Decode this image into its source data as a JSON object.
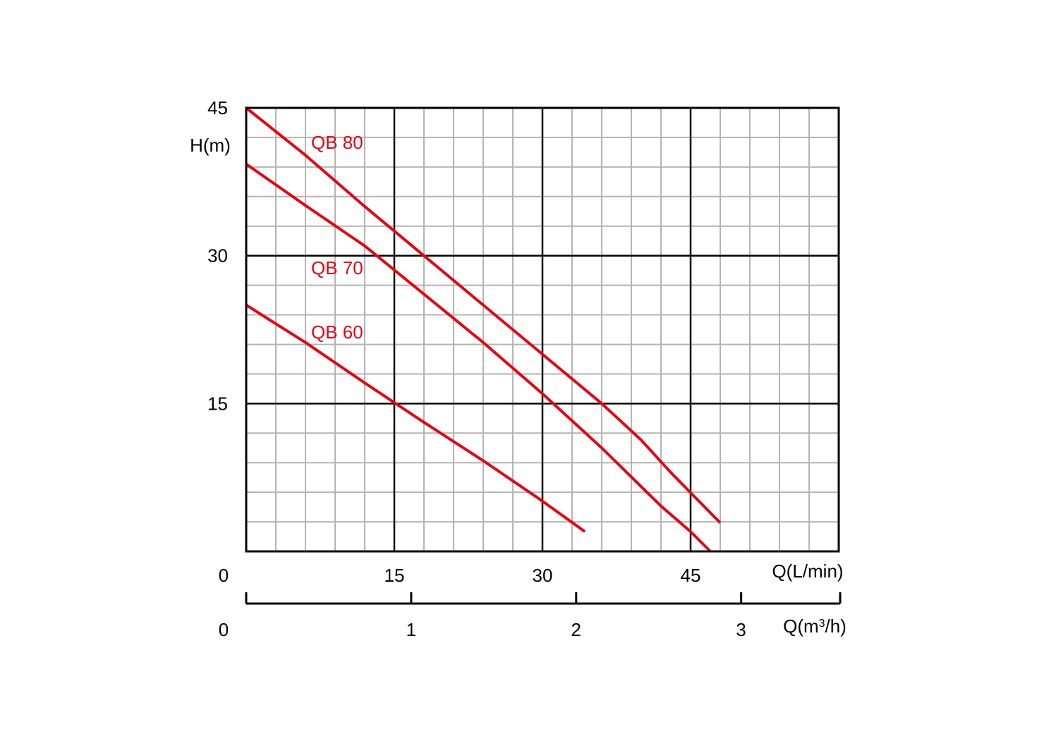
{
  "chart_data": {
    "type": "line",
    "xlabel": "Q(L/min)",
    "xlabel_secondary": "Q(m³/h)",
    "ylabel": "H(m)",
    "xlim": [
      0,
      60
    ],
    "ylim": [
      0,
      45
    ],
    "x_ticks": [
      {
        "value": 0,
        "label": "0"
      },
      {
        "value": 15,
        "label": "15"
      },
      {
        "value": 30,
        "label": "30"
      },
      {
        "value": 45,
        "label": "45"
      }
    ],
    "y_ticks": [
      {
        "value": 15,
        "label": "15"
      },
      {
        "value": 30,
        "label": "30"
      },
      {
        "value": 45,
        "label": "45"
      }
    ],
    "secondary_ticks": [
      {
        "value": 0,
        "label": "0"
      },
      {
        "value": 1,
        "label": "1"
      },
      {
        "value": 2,
        "label": "2"
      },
      {
        "value": 3,
        "label": "3"
      }
    ],
    "secondary_range": [
      0,
      3.6
    ],
    "grid": true,
    "minor_x_step": 3,
    "minor_y_step": 3,
    "line_color": "#e30613",
    "series": [
      {
        "name": "QB 80",
        "x": [
          0,
          6,
          12,
          18,
          24,
          30,
          36,
          40,
          43,
          48
        ],
        "y": [
          45,
          40.2,
          35,
          30,
          25,
          20,
          15,
          11.3,
          8,
          2.9
        ]
      },
      {
        "name": "QB 70",
        "x": [
          0,
          6,
          12,
          18,
          24,
          30,
          36,
          42,
          45,
          47
        ],
        "y": [
          39.3,
          35.1,
          31,
          26.1,
          21.2,
          16,
          10.5,
          4.6,
          2,
          0
        ]
      },
      {
        "name": "QB 60",
        "x": [
          0,
          6,
          12,
          18,
          24,
          30,
          34.3
        ],
        "y": [
          25,
          21.2,
          17.1,
          13.1,
          9.2,
          5.1,
          2
        ]
      }
    ]
  }
}
